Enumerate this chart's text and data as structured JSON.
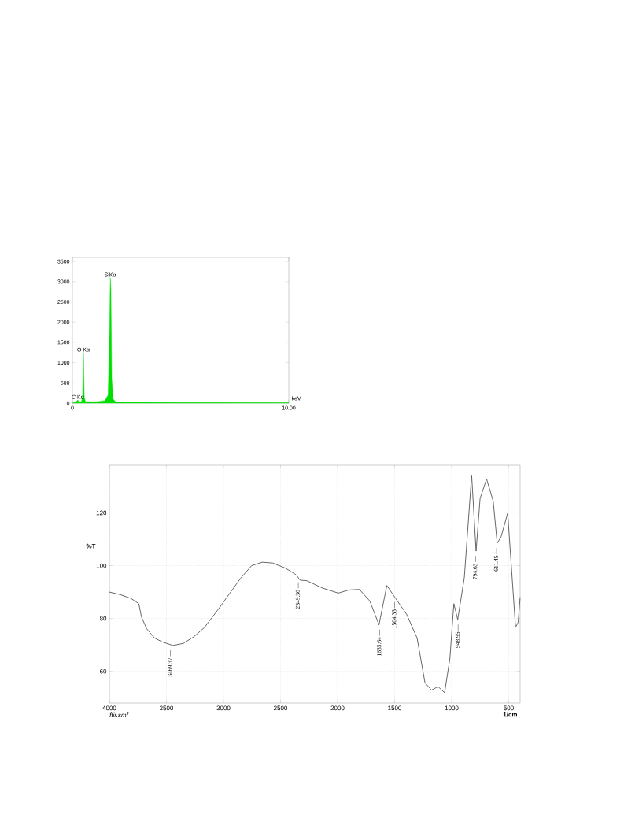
{
  "chart_data": [
    {
      "type": "area",
      "xlabel": "keV",
      "color": "#00e000",
      "xlim": [
        0,
        10
      ],
      "ylim": [
        0,
        3600
      ],
      "xticks": [
        0,
        {
          "value": 10,
          "label": "10.00"
        }
      ],
      "yticks": [
        0,
        500,
        1000,
        1500,
        2000,
        2500,
        3000,
        3500
      ],
      "x": [
        0,
        0.15,
        0.25,
        0.3,
        0.42,
        0.47,
        0.51,
        0.55,
        0.6,
        1.0,
        1.5,
        1.65,
        1.72,
        1.75,
        1.78,
        1.82,
        1.88,
        2.0,
        3,
        5,
        10
      ],
      "values": [
        0,
        20,
        80,
        30,
        40,
        150,
        1250,
        150,
        40,
        30,
        60,
        200,
        1800,
        3100,
        2800,
        600,
        100,
        30,
        20,
        15,
        10
      ],
      "annotations": [
        {
          "text": "C Kα",
          "x": 0.25,
          "y": 80
        },
        {
          "text": "O Kα",
          "x": 0.51,
          "y": 1250
        },
        {
          "text": "SiKα",
          "x": 1.75,
          "y": 3100
        }
      ]
    },
    {
      "type": "line",
      "xlabel": "1/cm",
      "ylabel": "%T",
      "color": "#555555",
      "grid": true,
      "xlim": [
        4000,
        400
      ],
      "ylim": [
        48,
        138
      ],
      "xticks": [
        4000,
        3500,
        3000,
        2500,
        2000,
        1500,
        1000,
        500
      ],
      "yticks": [
        60,
        80,
        100,
        120
      ],
      "x": [
        4000,
        3903,
        3811,
        3742,
        3719,
        3673,
        3604,
        3535,
        3443,
        3351,
        3259,
        3167,
        3052,
        2937,
        2845,
        2753,
        2661,
        2569,
        2454,
        2362,
        2328,
        2270,
        2131,
        1993,
        1901,
        1809,
        1717,
        1637,
        1568,
        1499,
        1395,
        1303,
        1234,
        1177,
        1119,
        1062,
        1016,
        981,
        947,
        889,
        825,
        786,
        751,
        694,
        636,
        601,
        567,
        509,
        440,
        417,
        400
      ],
      "values": [
        90,
        89,
        87.6,
        85.6,
        80.6,
        76.1,
        72.6,
        71.1,
        69.8,
        70.6,
        73.1,
        76.6,
        83.1,
        90,
        95.5,
        100,
        101.3,
        101,
        99,
        96.5,
        94.5,
        94.3,
        91.5,
        89.6,
        90.8,
        91,
        86.6,
        77.6,
        92.5,
        88.1,
        81.6,
        72.6,
        55.7,
        52.9,
        54.2,
        51.9,
        64.7,
        85.6,
        79.6,
        95.5,
        134.3,
        105.5,
        125.4,
        132.8,
        124.4,
        108.5,
        110.9,
        119.9,
        76.6,
        78.6,
        88
      ],
      "annotations": [
        {
          "text": "3469.37 —",
          "x": 3469.37,
          "y": 69.8
        },
        {
          "text": "2349.30 —",
          "x": 2349.3,
          "y": 95.5
        },
        {
          "text": "1635.64 —",
          "x": 1635.64,
          "y": 77.6
        },
        {
          "text": "1504.33 —",
          "x": 1504.33,
          "y": 88.1
        },
        {
          "text": "948.95 —",
          "x": 948.95,
          "y": 79.6
        },
        {
          "text": "794.63 —",
          "x": 794.63,
          "y": 105.5
        },
        {
          "text": "611.45 —",
          "x": 611.45,
          "y": 108.5
        },
        "ftir.smf"
      ]
    }
  ]
}
